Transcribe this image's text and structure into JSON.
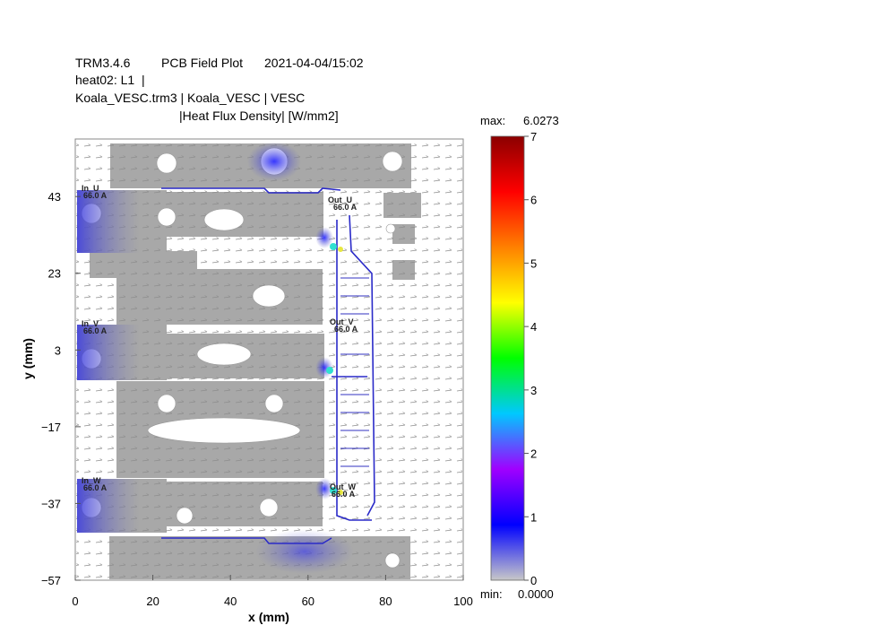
{
  "header": {
    "app": "TRM3.4.6",
    "plot_name": "PCB Field Plot",
    "timestamp": "2021-04-04/15:02",
    "line2": "heat02: L1  |",
    "line3": "Koala_VESC.trm3 | Koala_VESC | VESC",
    "quantity": "|Heat Flux Density| [W/mm2]"
  },
  "colorbar": {
    "max_label": "max:",
    "max_value": "6.0273",
    "min_label": "min:",
    "min_value": "0.0000",
    "ticks": [
      "0",
      "1",
      "2",
      "3",
      "4",
      "5",
      "6",
      "7"
    ],
    "range": [
      0,
      7
    ],
    "colors": [
      "#c8c8c8",
      "#0000ff",
      "#a000ff",
      "#00c8ff",
      "#00ff00",
      "#ffff00",
      "#ff8000",
      "#ff0000",
      "#8b0000"
    ]
  },
  "annotations": [
    {
      "id": "in-u",
      "name": "In_U",
      "current": "66.0 A"
    },
    {
      "id": "out-u",
      "name": "Out_U",
      "current": "66.0 A"
    },
    {
      "id": "in-v",
      "name": "In_V",
      "current": "66.0 A"
    },
    {
      "id": "out-v",
      "name": "Out_V",
      "current": "66.0 A"
    },
    {
      "id": "in-w",
      "name": "In_W",
      "current": "66.0 A"
    },
    {
      "id": "out-w",
      "name": "Out_W",
      "current": "66.0 A"
    }
  ],
  "chart_data": {
    "type": "heatmap",
    "title": "PCB Field Plot",
    "subtitle": "|Heat Flux Density| [W/mm2]",
    "xlabel": "x (mm)",
    "ylabel": "y (mm)",
    "xlim": [
      0,
      100
    ],
    "ylim": [
      -57,
      58
    ],
    "x_ticks": [
      0,
      20,
      40,
      60,
      80,
      100
    ],
    "y_ticks": [
      43,
      23,
      3,
      -17,
      -37,
      -57
    ],
    "value_min": 0.0,
    "value_max": 6.0273,
    "colorbar_range": [
      0,
      7
    ]
  }
}
